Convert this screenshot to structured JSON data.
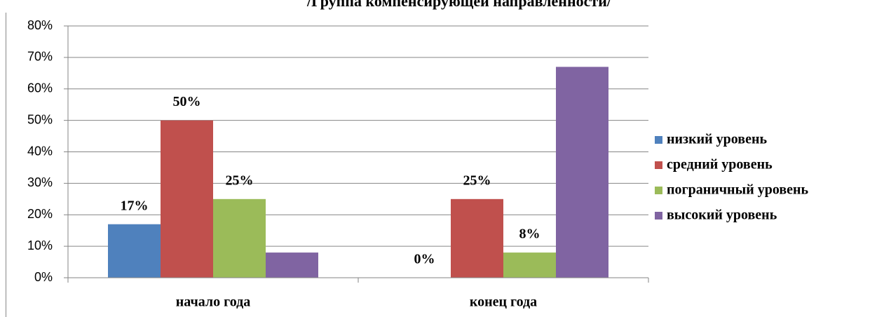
{
  "chart_data": {
    "type": "bar",
    "title": "/Группа компенсирующей направленности/",
    "categories": [
      "начало года",
      "конец года"
    ],
    "series": [
      {
        "name": "низкий уровень",
        "color": "#4f81bd",
        "values": [
          17,
          0
        ],
        "value_labels": [
          "17%",
          "0%"
        ]
      },
      {
        "name": "средний уровень",
        "color": "#c0504d",
        "values": [
          50,
          25
        ],
        "value_labels": [
          "50%",
          "25%"
        ]
      },
      {
        "name": "пограничный уровень",
        "color": "#9bbb59",
        "values": [
          25,
          8
        ],
        "value_labels": [
          "25%",
          "8%"
        ]
      },
      {
        "name": "высокий уровень",
        "color": "#8064a2",
        "values": [
          8,
          67
        ]
      }
    ],
    "ylim": [
      0,
      80
    ],
    "yticks": [
      {
        "value": 0,
        "label": "0%"
      },
      {
        "value": 10,
        "label": "10%"
      },
      {
        "value": 20,
        "label": "20%"
      },
      {
        "value": 30,
        "label": "30%"
      },
      {
        "value": 40,
        "label": "40%"
      },
      {
        "value": 50,
        "label": "50%"
      },
      {
        "value": 60,
        "label": "60%"
      },
      {
        "value": 70,
        "label": "70%"
      },
      {
        "value": 80,
        "label": "80%"
      }
    ],
    "grid": true,
    "legend": "right"
  }
}
